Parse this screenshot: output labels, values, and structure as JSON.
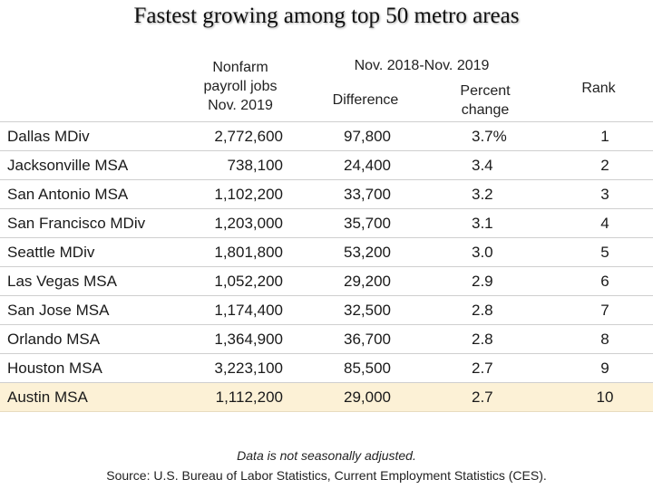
{
  "title": "Fastest growing among top 50 metro areas",
  "headers": {
    "jobs": [
      "Nonfarm",
      "payroll jobs",
      "Nov. 2019"
    ],
    "span": "Nov. 2018-Nov. 2019",
    "difference": "Difference",
    "percent": [
      "Percent",
      "change"
    ],
    "rank": "Rank"
  },
  "rows": [
    {
      "area": "Dallas MDiv",
      "jobs": "2,772,600",
      "difference": "97,800",
      "percent": "3.7%",
      "rank": "1"
    },
    {
      "area": "Jacksonville MSA",
      "jobs": "738,100",
      "difference": "24,400",
      "percent": "3.4",
      "rank": "2"
    },
    {
      "area": "San Antonio MSA",
      "jobs": "1,102,200",
      "difference": "33,700",
      "percent": "3.2",
      "rank": "3"
    },
    {
      "area": "San Francisco MDiv",
      "jobs": "1,203,000",
      "difference": "35,700",
      "percent": "3.1",
      "rank": "4"
    },
    {
      "area": "Seattle MDiv",
      "jobs": "1,801,800",
      "difference": "53,200",
      "percent": "3.0",
      "rank": "5"
    },
    {
      "area": "Las Vegas MSA",
      "jobs": "1,052,200",
      "difference": "29,200",
      "percent": "2.9",
      "rank": "6"
    },
    {
      "area": "San Jose MSA",
      "jobs": "1,174,400",
      "difference": "32,500",
      "percent": "2.8",
      "rank": "7"
    },
    {
      "area": "Orlando MSA",
      "jobs": "1,364,900",
      "difference": "36,700",
      "percent": "2.8",
      "rank": "8"
    },
    {
      "area": "Houston MSA",
      "jobs": "3,223,100",
      "difference": "85,500",
      "percent": "2.7",
      "rank": "9"
    },
    {
      "area": "Austin MSA",
      "jobs": "1,112,200",
      "difference": "29,000",
      "percent": "2.7",
      "rank": "10"
    }
  ],
  "highlight_color": "#fcf1d6",
  "note": "Data is not seasonally adjusted.",
  "source": "Source:  U.S. Bureau of Labor Statistics, Current Employment Statistics (CES)."
}
